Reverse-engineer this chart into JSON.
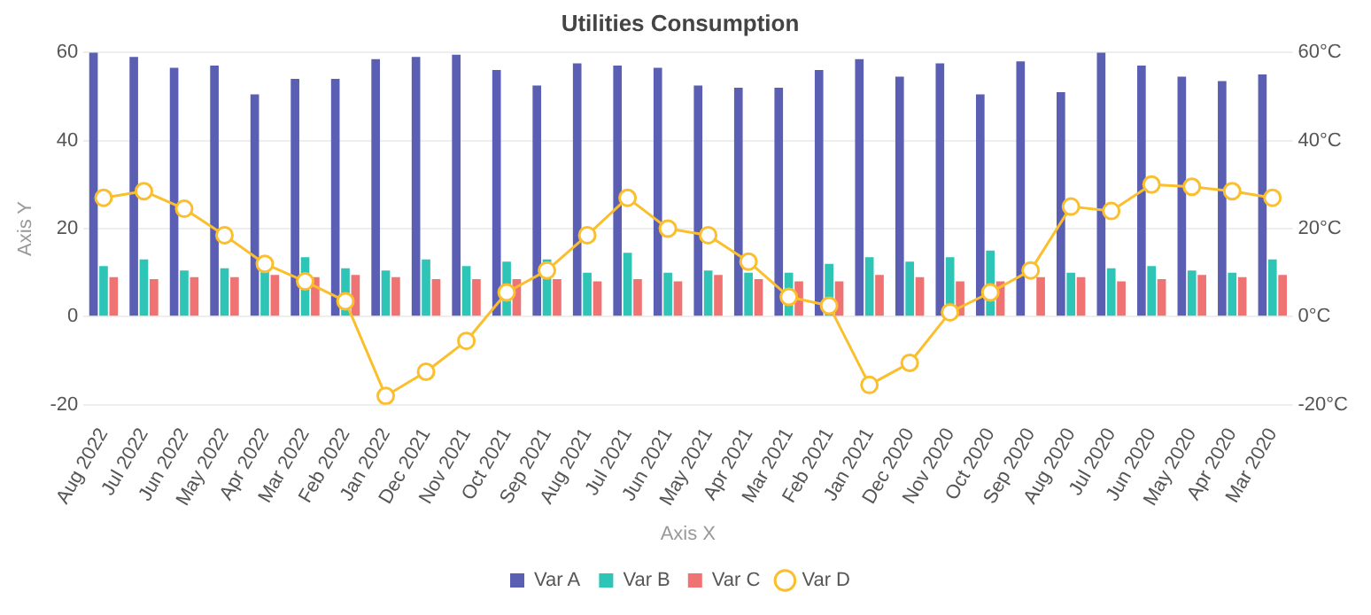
{
  "chart_data": {
    "type": "bar",
    "title": "Utilities Consumption",
    "xlabel": "Axis X",
    "ylabel": "Axis Y",
    "categories": [
      "Aug 2022",
      "Jul 2022",
      "Jun 2022",
      "May 2022",
      "Apr 2022",
      "Mar 2022",
      "Feb 2022",
      "Jan 2022",
      "Dec 2021",
      "Nov 2021",
      "Oct 2021",
      "Sep 2021",
      "Aug 2021",
      "Jul 2021",
      "Jun 2021",
      "May 2021",
      "Apr 2021",
      "Mar 2021",
      "Feb 2021",
      "Jan 2021",
      "Dec 2020",
      "Nov 2020",
      "Oct 2020",
      "Sep 2020",
      "Aug 2020",
      "Jul 2020",
      "Jun 2020",
      "May 2020",
      "Apr 2020",
      "Mar 2020"
    ],
    "series": [
      {
        "name": "Var A",
        "color": "#5b5fb3",
        "values": [
          60,
          59,
          56.5,
          57,
          50.5,
          54,
          54,
          58.5,
          59,
          59.5,
          56,
          52.5,
          57.5,
          57,
          56.5,
          52.5,
          52,
          52,
          56,
          58.5,
          54.5,
          57.5,
          50.5,
          58,
          51,
          60,
          57,
          54.5,
          53.5,
          55
        ]
      },
      {
        "name": "Var B",
        "color": "#2ec4b6",
        "values": [
          11.5,
          13,
          10.5,
          11,
          10.5,
          13.5,
          11,
          10.5,
          13,
          11.5,
          12.5,
          13,
          10,
          14.5,
          10,
          10.5,
          10,
          10,
          12,
          13.5,
          12.5,
          13.5,
          15,
          null,
          10,
          11,
          11.5,
          10.5,
          10,
          13
        ]
      },
      {
        "name": "Var C",
        "color": "#f07373",
        "values": [
          9,
          8.5,
          9,
          9,
          9.5,
          9,
          9.5,
          9,
          8.5,
          8.5,
          8.5,
          8.5,
          8,
          8.5,
          8,
          9.5,
          8.5,
          8,
          8,
          9.5,
          9,
          8,
          8,
          9,
          9,
          8,
          8.5,
          9.5,
          9,
          9.5
        ]
      },
      {
        "name": "Var D",
        "type": "line",
        "axis": "y2",
        "color": "#fbbf2e",
        "marker": "circle",
        "values": [
          27,
          28.5,
          24.5,
          18.5,
          12,
          8,
          3.5,
          -18,
          -12.5,
          -5.5,
          5.5,
          10.5,
          18.5,
          27,
          20,
          18.5,
          12.5,
          4.5,
          2.5,
          -15.5,
          -10.5,
          1,
          5.5,
          10.5,
          25,
          24,
          30,
          29.5,
          28.5,
          27
        ]
      }
    ],
    "ylim": [
      -20,
      60
    ],
    "yticks": [
      -20,
      0,
      20,
      40,
      60
    ],
    "y2lim": [
      -20,
      60
    ],
    "y2ticks": [
      {
        "value": -20,
        "label": "-20°C"
      },
      {
        "value": 0,
        "label": "0°C"
      },
      {
        "value": 20,
        "label": "20°C"
      },
      {
        "value": 40,
        "label": "40°C"
      },
      {
        "value": 60,
        "label": "60°C"
      }
    ],
    "grid": "y",
    "legend": "bottom"
  }
}
